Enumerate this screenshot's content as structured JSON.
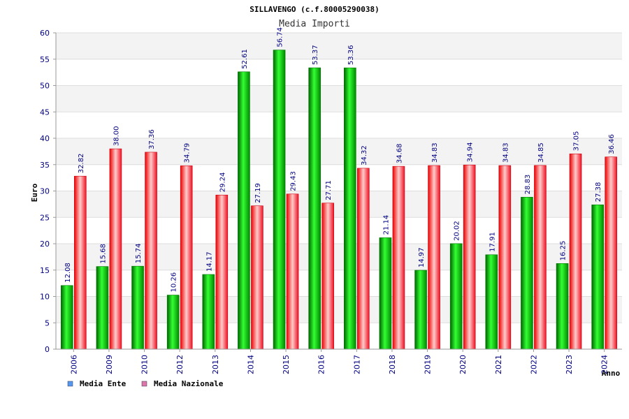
{
  "chart_data": {
    "type": "bar",
    "title": "SILLAVENGO (c.f.80005290038)",
    "subtitle": "Media Importi",
    "xlabel": "Anno",
    "ylabel": "Euro",
    "ylim": [
      0,
      60
    ],
    "ystep": 5,
    "categories": [
      "2006",
      "2009",
      "2010",
      "2012",
      "2013",
      "2014",
      "2015",
      "2016",
      "2017",
      "2018",
      "2019",
      "2020",
      "2021",
      "2022",
      "2023",
      "2024"
    ],
    "series": [
      {
        "name": "Media Ente",
        "color": "#00cc00",
        "legend_color": "#5599ee",
        "values": [
          12.08,
          15.68,
          15.74,
          10.26,
          14.17,
          52.61,
          56.74,
          53.37,
          53.36,
          21.14,
          14.97,
          20.02,
          17.91,
          28.83,
          16.25,
          27.38
        ],
        "labels": [
          "12.08",
          "15.68",
          "15.74",
          "10.26",
          "14.17",
          "52.61",
          "56.74",
          "53.37",
          "53.36",
          "21.14",
          "14.97",
          "20.02",
          "17.91",
          "28.83",
          "16.25",
          "27.38"
        ]
      },
      {
        "name": "Media Nazionale",
        "color": "#ee2233",
        "legend_color": "#dd77aa",
        "values": [
          32.82,
          38.0,
          37.36,
          34.79,
          29.24,
          27.19,
          29.43,
          27.71,
          34.32,
          34.68,
          34.83,
          34.94,
          34.83,
          34.85,
          37.05,
          36.46
        ],
        "labels": [
          "32.82",
          "38.00",
          "37.36",
          "34.79",
          "29.24",
          "27.19",
          "29.43",
          "27.71",
          "34.32",
          "34.68",
          "34.83",
          "34.94",
          "34.83",
          "34.85",
          "37.05",
          "36.46"
        ]
      }
    ],
    "grid": true,
    "legend": "bottom-left"
  }
}
